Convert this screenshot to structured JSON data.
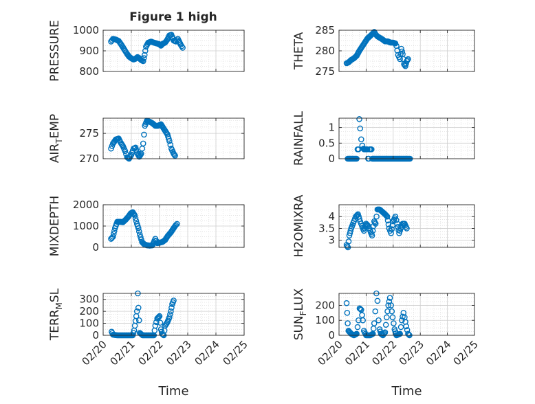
{
  "figure_title": "Figure 1 high",
  "x_axis": {
    "label": "Time",
    "tick_labels": [
      "02/20",
      "02/21",
      "02/22",
      "02/23",
      "02/24",
      "02/25"
    ]
  },
  "colors": {
    "marker": "#0072BD",
    "axis": "#262626",
    "grid": "#dcdcdc",
    "background": "#ffffff"
  },
  "chart_data": [
    {
      "type": "scatter",
      "ylabel": "PRESSURE",
      "ylim": [
        800,
        1000
      ],
      "yticks": [
        800,
        900,
        1000
      ],
      "xlim": [
        0,
        5
      ],
      "grid": true,
      "marker": "open-circle",
      "anchors": [
        [
          0.28,
          945
        ],
        [
          0.35,
          958
        ],
        [
          0.45,
          955
        ],
        [
          0.55,
          948
        ],
        [
          0.62,
          935
        ],
        [
          0.7,
          918
        ],
        [
          0.78,
          900
        ],
        [
          0.85,
          885
        ],
        [
          0.92,
          872
        ],
        [
          1.0,
          864
        ],
        [
          1.08,
          858
        ],
        [
          1.15,
          862
        ],
        [
          1.22,
          870
        ],
        [
          1.28,
          865
        ],
        [
          1.35,
          855
        ],
        [
          1.42,
          850
        ],
        [
          1.47,
          880
        ],
        [
          1.52,
          920
        ],
        [
          1.6,
          940
        ],
        [
          1.7,
          945
        ],
        [
          1.8,
          940
        ],
        [
          1.9,
          936
        ],
        [
          2.0,
          932
        ],
        [
          2.05,
          925
        ],
        [
          2.12,
          935
        ],
        [
          2.2,
          940
        ],
        [
          2.28,
          955
        ],
        [
          2.35,
          975
        ],
        [
          2.42,
          978
        ],
        [
          2.5,
          950
        ],
        [
          2.58,
          945
        ],
        [
          2.65,
          958
        ],
        [
          2.75,
          930
        ],
        [
          2.82,
          915
        ]
      ]
    },
    {
      "type": "scatter",
      "ylabel": "THETA",
      "ylim": [
        275,
        285
      ],
      "yticks": [
        275,
        280,
        285
      ],
      "xlim": [
        0,
        5
      ],
      "grid": true,
      "marker": "open-circle",
      "anchors": [
        [
          0.28,
          277
        ],
        [
          0.35,
          277.2
        ],
        [
          0.45,
          277.8
        ],
        [
          0.55,
          278.2
        ],
        [
          0.65,
          278.8
        ],
        [
          0.75,
          280
        ],
        [
          0.85,
          281
        ],
        [
          0.95,
          282
        ],
        [
          1.05,
          283
        ],
        [
          1.15,
          283.6
        ],
        [
          1.25,
          284.2
        ],
        [
          1.3,
          284.6
        ],
        [
          1.35,
          284
        ],
        [
          1.42,
          283.5
        ],
        [
          1.5,
          283.2
        ],
        [
          1.6,
          282.8
        ],
        [
          1.7,
          282.3
        ],
        [
          1.8,
          282.3
        ],
        [
          1.9,
          282
        ],
        [
          2.0,
          282
        ],
        [
          2.08,
          281.8
        ],
        [
          2.12,
          281.2
        ],
        [
          2.18,
          279
        ],
        [
          2.25,
          278
        ],
        [
          2.3,
          280.5
        ],
        [
          2.35,
          279.2
        ],
        [
          2.4,
          276.8
        ],
        [
          2.45,
          276.3
        ],
        [
          2.5,
          277.5
        ],
        [
          2.55,
          278
        ]
      ]
    },
    {
      "type": "scatter",
      "ylabel": "AIR_TEMP",
      "ylim": [
        270,
        278
      ],
      "yticks": [
        270,
        275
      ],
      "xlim": [
        0,
        5
      ],
      "grid": true,
      "marker": "open-circle",
      "anchors": [
        [
          0.28,
          272
        ],
        [
          0.35,
          273
        ],
        [
          0.45,
          273.8
        ],
        [
          0.55,
          274
        ],
        [
          0.62,
          273.2
        ],
        [
          0.7,
          272.5
        ],
        [
          0.78,
          271.5
        ],
        [
          0.85,
          270.3
        ],
        [
          0.92,
          270
        ],
        [
          1.0,
          270.8
        ],
        [
          1.08,
          272
        ],
        [
          1.15,
          272.2
        ],
        [
          1.2,
          271.2
        ],
        [
          1.28,
          270.4
        ],
        [
          1.35,
          271
        ],
        [
          1.42,
          273
        ],
        [
          1.48,
          276.5
        ],
        [
          1.55,
          277.5
        ],
        [
          1.65,
          277.3
        ],
        [
          1.75,
          277
        ],
        [
          1.85,
          276.5
        ],
        [
          1.95,
          276.5
        ],
        [
          2.05,
          276.8
        ],
        [
          2.12,
          276.2
        ],
        [
          2.2,
          275.5
        ],
        [
          2.28,
          274.8
        ],
        [
          2.35,
          273.5
        ],
        [
          2.42,
          272
        ],
        [
          2.5,
          271
        ],
        [
          2.55,
          270.6
        ]
      ]
    },
    {
      "type": "scatter",
      "ylabel": "RAINFALL",
      "ylim": [
        0,
        1.3
      ],
      "yticks": [
        0,
        0.5,
        1
      ],
      "xlim": [
        0,
        5
      ],
      "grid": true,
      "marker": "open-circle",
      "anchors": [
        [
          0.32,
          0
        ],
        [
          0.5,
          0
        ],
        [
          0.65,
          0
        ],
        [
          0.72,
          0.3
        ],
        [
          0.75,
          1.27
        ],
        [
          0.78,
          0.97
        ],
        [
          0.82,
          0.62
        ],
        [
          0.86,
          0.42
        ],
        [
          0.9,
          0.32
        ],
        [
          0.95,
          0.3
        ],
        [
          1.0,
          0.3
        ],
        [
          1.05,
          0.3
        ],
        [
          1.1,
          0
        ],
        [
          1.15,
          0.3
        ],
        [
          1.2,
          0.3
        ],
        [
          1.25,
          0
        ],
        [
          1.35,
          0
        ],
        [
          1.6,
          0
        ],
        [
          1.9,
          0
        ],
        [
          2.2,
          0
        ],
        [
          2.5,
          0
        ],
        [
          2.62,
          0
        ]
      ]
    },
    {
      "type": "scatter",
      "ylabel": "MIXDEPTH",
      "ylim": [
        0,
        2000
      ],
      "yticks": [
        0,
        1000,
        2000
      ],
      "xlim": [
        0,
        5
      ],
      "grid": true,
      "marker": "open-circle",
      "anchors": [
        [
          0.28,
          400
        ],
        [
          0.35,
          500
        ],
        [
          0.42,
          900
        ],
        [
          0.5,
          1200
        ],
        [
          0.6,
          1200
        ],
        [
          0.7,
          1180
        ],
        [
          0.8,
          1300
        ],
        [
          0.9,
          1450
        ],
        [
          0.98,
          1600
        ],
        [
          1.05,
          1650
        ],
        [
          1.12,
          1500
        ],
        [
          1.2,
          1100
        ],
        [
          1.25,
          900
        ],
        [
          1.3,
          600
        ],
        [
          1.38,
          250
        ],
        [
          1.45,
          150
        ],
        [
          1.55,
          100
        ],
        [
          1.65,
          80
        ],
        [
          1.75,
          100
        ],
        [
          1.85,
          400
        ],
        [
          1.92,
          200
        ],
        [
          2.0,
          220
        ],
        [
          2.1,
          250
        ],
        [
          2.2,
          350
        ],
        [
          2.3,
          550
        ],
        [
          2.4,
          700
        ],
        [
          2.5,
          900
        ],
        [
          2.58,
          1050
        ],
        [
          2.62,
          1100
        ]
      ]
    },
    {
      "type": "scatter",
      "ylabel": "H2OMIXRA",
      "ylim": [
        2.7,
        4.5
      ],
      "yticks": [
        3,
        3.5,
        4
      ],
      "xlim": [
        0,
        5
      ],
      "grid": true,
      "marker": "open-circle",
      "anchors": [
        [
          0.28,
          2.8
        ],
        [
          0.33,
          2.7
        ],
        [
          0.38,
          3.2
        ],
        [
          0.45,
          3.5
        ],
        [
          0.55,
          3.8
        ],
        [
          0.62,
          4.0
        ],
        [
          0.7,
          4.1
        ],
        [
          0.78,
          3.8
        ],
        [
          0.85,
          3.6
        ],
        [
          0.92,
          3.4
        ],
        [
          1.0,
          3.7
        ],
        [
          1.08,
          3.6
        ],
        [
          1.15,
          3.4
        ],
        [
          1.22,
          3.2
        ],
        [
          1.3,
          3.8
        ],
        [
          1.35,
          3.7
        ],
        [
          1.42,
          4.3
        ],
        [
          1.5,
          4.3
        ],
        [
          1.6,
          4.2
        ],
        [
          1.7,
          4.1
        ],
        [
          1.78,
          4.0
        ],
        [
          1.85,
          3.5
        ],
        [
          1.92,
          3.3
        ],
        [
          2.0,
          3.8
        ],
        [
          2.08,
          4.0
        ],
        [
          2.15,
          3.7
        ],
        [
          2.22,
          3.3
        ],
        [
          2.28,
          3.5
        ],
        [
          2.35,
          3.7
        ],
        [
          2.42,
          3.7
        ],
        [
          2.5,
          3.5
        ]
      ]
    },
    {
      "type": "scatter",
      "ylabel": "TERR_MSL",
      "ylim": [
        0,
        350
      ],
      "yticks": [
        0,
        100,
        200,
        300
      ],
      "xlim": [
        0,
        5
      ],
      "grid": true,
      "marker": "open-circle",
      "anchors": [
        [
          0.3,
          30
        ],
        [
          0.35,
          5
        ],
        [
          0.5,
          0
        ],
        [
          0.7,
          0
        ],
        [
          0.9,
          0
        ],
        [
          1.05,
          0
        ],
        [
          1.1,
          40
        ],
        [
          1.15,
          120
        ],
        [
          1.2,
          200
        ],
        [
          1.23,
          350
        ],
        [
          1.25,
          230
        ],
        [
          1.3,
          20
        ],
        [
          1.4,
          0
        ],
        [
          1.6,
          0
        ],
        [
          1.8,
          0
        ],
        [
          1.85,
          80
        ],
        [
          1.92,
          140
        ],
        [
          2.0,
          160
        ],
        [
          2.05,
          50
        ],
        [
          2.1,
          10
        ],
        [
          2.15,
          0
        ],
        [
          2.2,
          80
        ],
        [
          2.28,
          110
        ],
        [
          2.35,
          150
        ],
        [
          2.4,
          200
        ],
        [
          2.45,
          260
        ],
        [
          2.5,
          290
        ]
      ]
    },
    {
      "type": "scatter",
      "ylabel": "SUN_FLUX",
      "ylim": [
        0,
        280
      ],
      "yticks": [
        0,
        100,
        200
      ],
      "xlim": [
        0,
        5
      ],
      "grid": true,
      "marker": "open-circle",
      "anchors": [
        [
          0.28,
          215
        ],
        [
          0.3,
          150
        ],
        [
          0.32,
          80
        ],
        [
          0.35,
          30
        ],
        [
          0.4,
          20
        ],
        [
          0.45,
          10
        ],
        [
          0.55,
          0
        ],
        [
          0.65,
          10
        ],
        [
          0.72,
          100
        ],
        [
          0.76,
          180
        ],
        [
          0.82,
          170
        ],
        [
          0.88,
          100
        ],
        [
          0.92,
          30
        ],
        [
          1.0,
          0
        ],
        [
          1.15,
          0
        ],
        [
          1.25,
          10
        ],
        [
          1.3,
          80
        ],
        [
          1.34,
          160
        ],
        [
          1.38,
          280
        ],
        [
          1.42,
          230
        ],
        [
          1.46,
          100
        ],
        [
          1.5,
          40
        ],
        [
          1.55,
          10
        ],
        [
          1.62,
          0
        ],
        [
          1.7,
          20
        ],
        [
          1.76,
          120
        ],
        [
          1.82,
          200
        ],
        [
          1.88,
          250
        ],
        [
          1.92,
          200
        ],
        [
          1.98,
          120
        ],
        [
          2.05,
          40
        ],
        [
          2.12,
          0
        ],
        [
          2.25,
          10
        ],
        [
          2.32,
          100
        ],
        [
          2.38,
          150
        ],
        [
          2.42,
          120
        ],
        [
          2.48,
          60
        ],
        [
          2.55,
          10
        ],
        [
          2.6,
          0
        ]
      ]
    }
  ]
}
